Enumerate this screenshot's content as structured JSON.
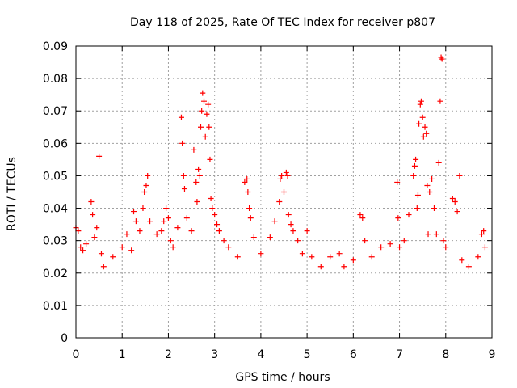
{
  "chart_data": {
    "type": "scatter",
    "title": "Day 118 of 2025, Rate Of TEC Index for receiver p807",
    "xlabel": "GPS time / hours",
    "ylabel": "ROTI / TECUs",
    "xlim": [
      0,
      9
    ],
    "ylim": [
      0,
      0.09
    ],
    "x_ticks": [
      "0",
      "1",
      "2",
      "3",
      "4",
      "5",
      "6",
      "7",
      "8",
      "9"
    ],
    "y_ticks": [
      "0",
      "0.01",
      "0.02",
      "0.03",
      "0.04",
      "0.05",
      "0.06",
      "0.07",
      "0.08",
      "0.09"
    ],
    "grid": true,
    "marker": "+",
    "marker_color": "#ff0000",
    "series": [
      {
        "name": "ROTI",
        "points": [
          [
            0.0,
            0.034
          ],
          [
            0.05,
            0.033
          ],
          [
            0.1,
            0.028
          ],
          [
            0.15,
            0.027
          ],
          [
            0.22,
            0.029
          ],
          [
            0.33,
            0.042
          ],
          [
            0.36,
            0.038
          ],
          [
            0.4,
            0.031
          ],
          [
            0.45,
            0.034
          ],
          [
            0.5,
            0.056
          ],
          [
            0.55,
            0.026
          ],
          [
            0.6,
            0.022
          ],
          [
            0.8,
            0.025
          ],
          [
            1.0,
            0.028
          ],
          [
            1.1,
            0.032
          ],
          [
            1.2,
            0.027
          ],
          [
            1.25,
            0.039
          ],
          [
            1.3,
            0.036
          ],
          [
            1.38,
            0.033
          ],
          [
            1.45,
            0.04
          ],
          [
            1.48,
            0.045
          ],
          [
            1.52,
            0.047
          ],
          [
            1.55,
            0.05
          ],
          [
            1.6,
            0.036
          ],
          [
            1.75,
            0.032
          ],
          [
            1.85,
            0.033
          ],
          [
            1.9,
            0.036
          ],
          [
            1.95,
            0.04
          ],
          [
            2.0,
            0.037
          ],
          [
            2.05,
            0.03
          ],
          [
            2.1,
            0.028
          ],
          [
            2.2,
            0.034
          ],
          [
            2.28,
            0.068
          ],
          [
            2.3,
            0.06
          ],
          [
            2.33,
            0.05
          ],
          [
            2.35,
            0.046
          ],
          [
            2.4,
            0.037
          ],
          [
            2.5,
            0.033
          ],
          [
            2.55,
            0.058
          ],
          [
            2.6,
            0.048
          ],
          [
            2.62,
            0.042
          ],
          [
            2.65,
            0.052
          ],
          [
            2.68,
            0.05
          ],
          [
            2.7,
            0.065
          ],
          [
            2.72,
            0.07
          ],
          [
            2.74,
            0.0755
          ],
          [
            2.77,
            0.073
          ],
          [
            2.8,
            0.062
          ],
          [
            2.83,
            0.069
          ],
          [
            2.86,
            0.072
          ],
          [
            2.88,
            0.065
          ],
          [
            2.9,
            0.055
          ],
          [
            2.92,
            0.043
          ],
          [
            2.95,
            0.04
          ],
          [
            3.0,
            0.038
          ],
          [
            3.05,
            0.035
          ],
          [
            3.1,
            0.033
          ],
          [
            3.2,
            0.03
          ],
          [
            3.3,
            0.028
          ],
          [
            3.5,
            0.025
          ],
          [
            3.65,
            0.048
          ],
          [
            3.7,
            0.049
          ],
          [
            3.72,
            0.045
          ],
          [
            3.75,
            0.04
          ],
          [
            3.78,
            0.037
          ],
          [
            3.85,
            0.031
          ],
          [
            4.0,
            0.026
          ],
          [
            4.2,
            0.031
          ],
          [
            4.3,
            0.036
          ],
          [
            4.4,
            0.042
          ],
          [
            4.42,
            0.049
          ],
          [
            4.45,
            0.05
          ],
          [
            4.5,
            0.045
          ],
          [
            4.55,
            0.051
          ],
          [
            4.58,
            0.05
          ],
          [
            4.6,
            0.038
          ],
          [
            4.65,
            0.035
          ],
          [
            4.7,
            0.033
          ],
          [
            4.8,
            0.03
          ],
          [
            4.9,
            0.026
          ],
          [
            5.0,
            0.033
          ],
          [
            5.1,
            0.025
          ],
          [
            5.3,
            0.022
          ],
          [
            5.5,
            0.025
          ],
          [
            5.7,
            0.026
          ],
          [
            5.8,
            0.022
          ],
          [
            6.0,
            0.024
          ],
          [
            6.15,
            0.038
          ],
          [
            6.2,
            0.037
          ],
          [
            6.25,
            0.03
          ],
          [
            6.4,
            0.025
          ],
          [
            6.6,
            0.028
          ],
          [
            6.8,
            0.029
          ],
          [
            6.95,
            0.048
          ],
          [
            6.97,
            0.037
          ],
          [
            7.0,
            0.028
          ],
          [
            7.1,
            0.03
          ],
          [
            7.2,
            0.038
          ],
          [
            7.3,
            0.05
          ],
          [
            7.33,
            0.053
          ],
          [
            7.35,
            0.055
          ],
          [
            7.38,
            0.04
          ],
          [
            7.4,
            0.044
          ],
          [
            7.42,
            0.066
          ],
          [
            7.45,
            0.072
          ],
          [
            7.47,
            0.073
          ],
          [
            7.5,
            0.068
          ],
          [
            7.52,
            0.062
          ],
          [
            7.55,
            0.065
          ],
          [
            7.58,
            0.063
          ],
          [
            7.6,
            0.047
          ],
          [
            7.62,
            0.032
          ],
          [
            7.65,
            0.045
          ],
          [
            7.7,
            0.049
          ],
          [
            7.75,
            0.04
          ],
          [
            7.8,
            0.032
          ],
          [
            7.85,
            0.054
          ],
          [
            7.88,
            0.073
          ],
          [
            7.9,
            0.0865
          ],
          [
            7.92,
            0.086
          ],
          [
            7.95,
            0.03
          ],
          [
            8.0,
            0.028
          ],
          [
            8.15,
            0.043
          ],
          [
            8.2,
            0.042
          ],
          [
            8.25,
            0.039
          ],
          [
            8.3,
            0.05
          ],
          [
            8.35,
            0.024
          ],
          [
            8.5,
            0.022
          ],
          [
            8.7,
            0.025
          ],
          [
            8.78,
            0.032
          ],
          [
            8.82,
            0.033
          ],
          [
            8.85,
            0.028
          ]
        ]
      }
    ]
  }
}
